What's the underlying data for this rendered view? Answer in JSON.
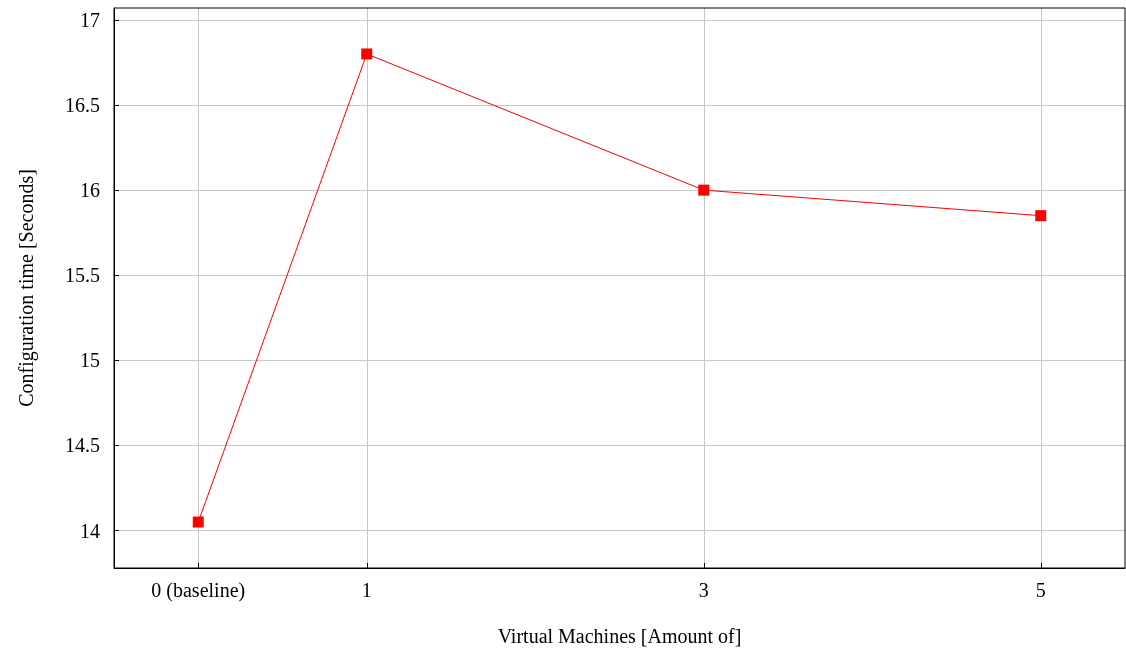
{
  "chart_data": {
    "type": "line",
    "xlabel": "Virtual Machines [Amount of]",
    "ylabel": "Configuration time [Seconds]",
    "x": [
      0,
      1,
      3,
      5
    ],
    "series": [
      {
        "color": "#ff0000",
        "values": [
          14.05,
          16.8,
          16.0,
          15.85
        ]
      }
    ],
    "xlim": [
      -0.5,
      5.5
    ],
    "xticks": [
      {
        "value": 0,
        "label": "0 (baseline)"
      },
      1,
      3,
      5
    ],
    "ylim": [
      13.78,
      17.07
    ],
    "yticks": [
      14,
      14.5,
      15,
      15.5,
      16,
      16.5,
      17
    ],
    "grid": true,
    "marker": "square",
    "line_style": "solid"
  }
}
